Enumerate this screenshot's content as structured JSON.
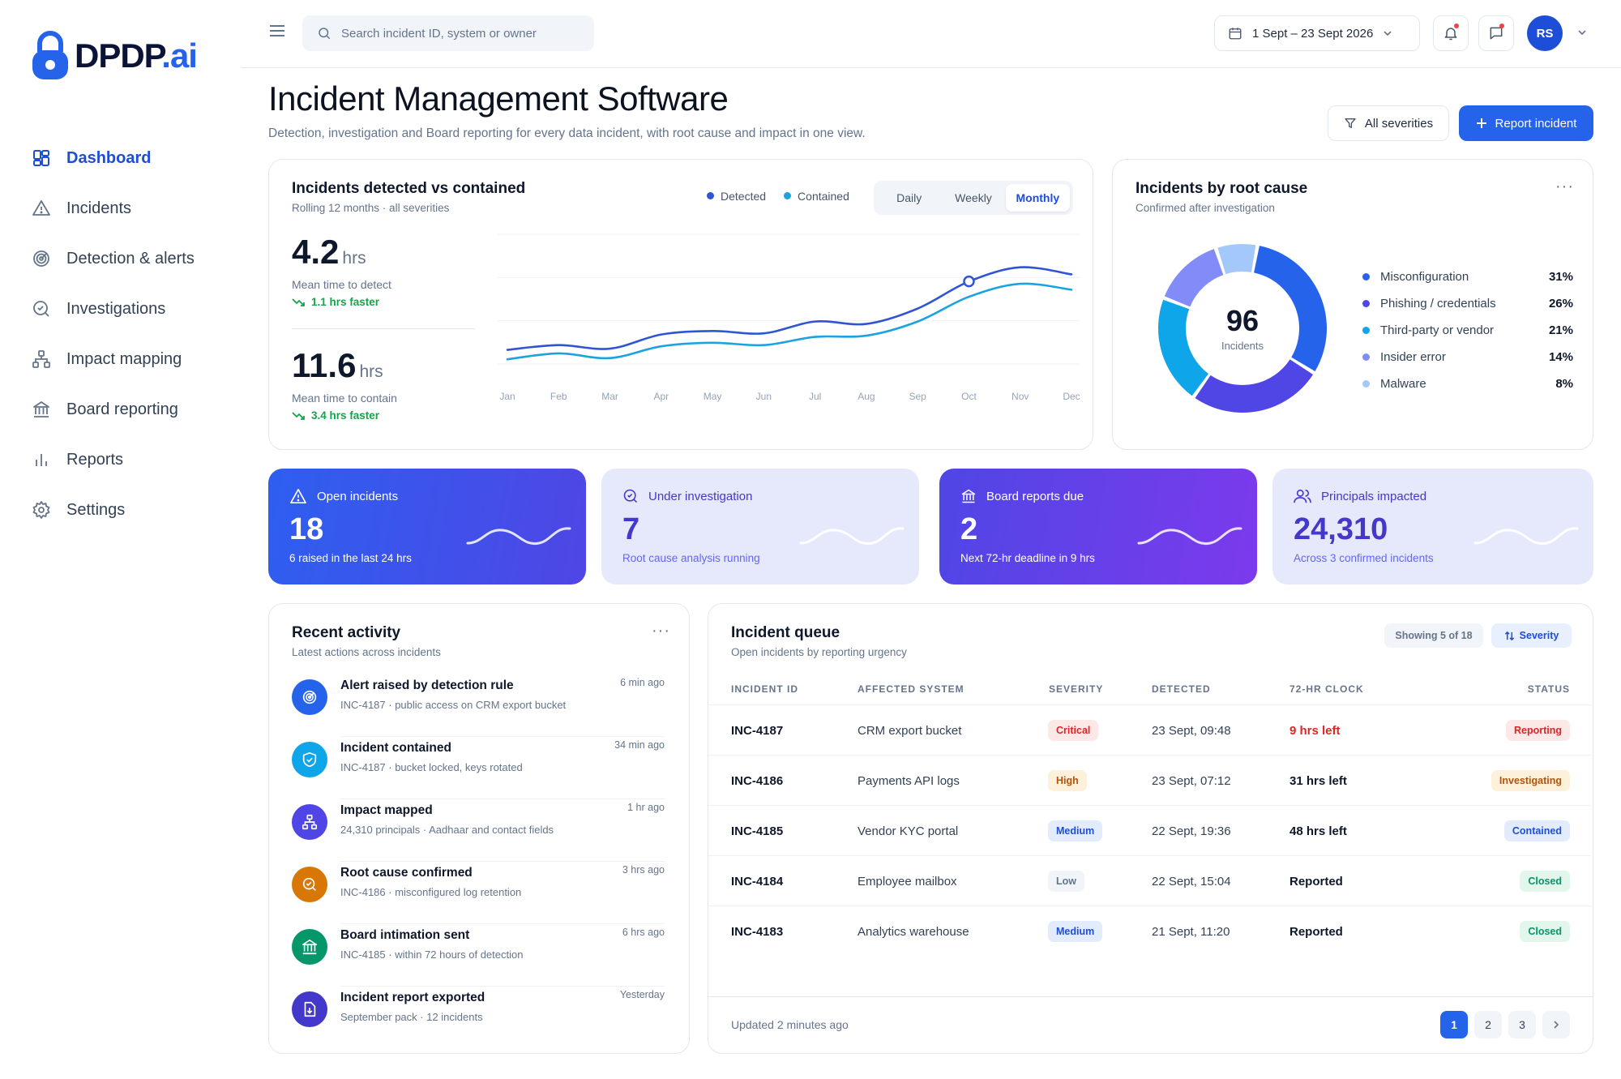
{
  "brand": {
    "name": "DPDP",
    "suffix": ".ai"
  },
  "nav": [
    {
      "label": "Dashboard",
      "icon": "dashboard-icon",
      "active": true
    },
    {
      "label": "Incidents",
      "icon": "warning-icon"
    },
    {
      "label": "Detection & alerts",
      "icon": "radar-icon"
    },
    {
      "label": "Investigations",
      "icon": "search-check-icon"
    },
    {
      "label": "Impact mapping",
      "icon": "hierarchy-icon"
    },
    {
      "label": "Board reporting",
      "icon": "bank-icon"
    },
    {
      "label": "Reports",
      "icon": "bar-chart-icon"
    },
    {
      "label": "Settings",
      "icon": "gear-icon"
    }
  ],
  "topbar": {
    "search_placeholder": "Search incident ID, system or owner",
    "date_range": "1 Sept – 23 Sept 2026",
    "avatar_initials": "RS"
  },
  "page": {
    "title": "Incident Management Software",
    "subtitle": "Detection, investigation and Board reporting for every data incident, with root cause and impact in one view.",
    "filter_label": "All severities",
    "primary_label": "Report incident"
  },
  "trend": {
    "title": "Incidents detected vs contained",
    "subtitle": "Rolling 12 months · all severities",
    "legend": [
      "Detected",
      "Contained"
    ],
    "tabs": [
      "Daily",
      "Weekly",
      "Monthly"
    ],
    "active_tab": "Monthly",
    "mttd": {
      "value": "4.2",
      "unit": "hrs",
      "label": "Mean time to detect",
      "trend": "1.1 hrs faster"
    },
    "mttc": {
      "value": "11.6",
      "unit": "hrs",
      "label": "Mean time to contain",
      "trend": "3.4 hrs faster"
    }
  },
  "chart_data": [
    {
      "type": "line",
      "x": [
        "Jan",
        "Feb",
        "Mar",
        "Apr",
        "May",
        "Jun",
        "Jul",
        "Aug",
        "Sep",
        "Oct",
        "Nov",
        "Dec"
      ],
      "series": [
        {
          "name": "Detected",
          "color": "#2f55d4",
          "values": [
            12,
            16,
            13,
            25,
            28,
            26,
            36,
            34,
            47,
            70,
            82,
            76
          ]
        },
        {
          "name": "Contained",
          "color": "#1ba3e0",
          "values": [
            4,
            9,
            5,
            15,
            18,
            16,
            23,
            24,
            36,
            57,
            68,
            63
          ]
        }
      ],
      "ylim": [
        0,
        110
      ],
      "grid": true,
      "highlight": {
        "x": "Oct",
        "series": "Detected"
      }
    },
    {
      "type": "pie",
      "title": "Incidents by root cause",
      "subtitle": "Confirmed after investigation",
      "total": "96",
      "total_label": "Incidents",
      "categories": [
        "Misconfiguration",
        "Phishing / credentials",
        "Third-party or vendor",
        "Insider error",
        "Malware"
      ],
      "values": [
        31,
        26,
        21,
        14,
        8
      ],
      "labels": [
        "31%",
        "26%",
        "21%",
        "14%",
        "8%"
      ],
      "colors": [
        "#2563eb",
        "#4f46e5",
        "#0ea5e9",
        "#818cf8",
        "#a5c8fb"
      ]
    }
  ],
  "kpis": [
    {
      "label": "Open incidents",
      "value": "18",
      "sub": "6 raised in the last 24 hrs",
      "icon": "warning-icon"
    },
    {
      "label": "Under investigation",
      "value": "7",
      "sub": "Root cause analysis running",
      "icon": "search-check-icon"
    },
    {
      "label": "Board reports due",
      "value": "2",
      "sub": "Next 72-hr deadline in 9 hrs",
      "icon": "bank-icon"
    },
    {
      "label": "Principals impacted",
      "value": "24,310",
      "sub": "Across 3 confirmed incidents",
      "icon": "users-icon"
    }
  ],
  "activity": {
    "title": "Recent activity",
    "subtitle": "Latest actions across incidents",
    "items": [
      {
        "title": "Alert raised by detection rule",
        "sub": "INC-4187 · public access on CRM export bucket",
        "time": "6 min ago",
        "color": "#2563eb",
        "icon": "radar-icon"
      },
      {
        "title": "Incident contained",
        "sub": "INC-4187 · bucket locked, keys rotated",
        "time": "34 min ago",
        "color": "#0ea5e9",
        "icon": "shield-check-icon"
      },
      {
        "title": "Impact mapped",
        "sub": "24,310 principals · Aadhaar and contact fields",
        "time": "1 hr ago",
        "color": "#4f46e5",
        "icon": "hierarchy-icon"
      },
      {
        "title": "Root cause confirmed",
        "sub": "INC-4186 · misconfigured log retention",
        "time": "3 hrs ago",
        "color": "#d97706",
        "icon": "search-check-icon"
      },
      {
        "title": "Board intimation sent",
        "sub": "INC-4185 · within 72 hours of detection",
        "time": "6 hrs ago",
        "color": "#059669",
        "icon": "bank-icon"
      },
      {
        "title": "Incident report exported",
        "sub": "September pack · 12 incidents",
        "time": "Yesterday",
        "color": "#4338ca",
        "icon": "file-download-icon"
      }
    ]
  },
  "queue": {
    "title": "Incident queue",
    "subtitle": "Open incidents by reporting urgency",
    "showing": "Showing 5 of 18",
    "sort_label": "Severity",
    "columns": [
      "INCIDENT ID",
      "AFFECTED SYSTEM",
      "SEVERITY",
      "DETECTED",
      "72-HR CLOCK",
      "STATUS"
    ],
    "rows": [
      {
        "id": "INC-4187",
        "system": "CRM export bucket",
        "severity": "Critical",
        "detected": "23 Sept, 09:48",
        "clock": "9 hrs left",
        "status": "Reporting",
        "sev_fg": "#dc2626",
        "sev_bg": "#fde8e8",
        "st_fg": "#dc2626",
        "st_bg": "#fde8e8",
        "clock_color": "#dc2626"
      },
      {
        "id": "INC-4186",
        "system": "Payments API logs",
        "severity": "High",
        "detected": "23 Sept, 07:12",
        "clock": "31 hrs left",
        "status": "Investigating",
        "sev_fg": "#b45309",
        "sev_bg": "#fdf1dc",
        "st_fg": "#b45309",
        "st_bg": "#fdf1dc",
        "clock_color": "#0f172a"
      },
      {
        "id": "INC-4185",
        "system": "Vendor KYC portal",
        "severity": "Medium",
        "detected": "22 Sept, 19:36",
        "clock": "48 hrs left",
        "status": "Contained",
        "sev_fg": "#1d4ed8",
        "sev_bg": "#e3ecfd",
        "st_fg": "#1d4ed8",
        "st_bg": "#e3ecfd",
        "clock_color": "#0f172a"
      },
      {
        "id": "INC-4184",
        "system": "Employee mailbox",
        "severity": "Low",
        "detected": "22 Sept, 15:04",
        "clock": "Reported",
        "status": "Closed",
        "sev_fg": "#64748b",
        "sev_bg": "#f1f4f9",
        "st_fg": "#059669",
        "st_bg": "#e2f6ec",
        "clock_color": "#0f172a"
      },
      {
        "id": "INC-4183",
        "system": "Analytics warehouse",
        "severity": "Medium",
        "detected": "21 Sept, 11:20",
        "clock": "Reported",
        "status": "Closed",
        "sev_fg": "#1d4ed8",
        "sev_bg": "#e3ecfd",
        "st_fg": "#059669",
        "st_bg": "#e2f6ec",
        "clock_color": "#0f172a"
      }
    ],
    "updated": "Updated 2 minutes ago",
    "pages": [
      "1",
      "2",
      "3"
    ]
  }
}
